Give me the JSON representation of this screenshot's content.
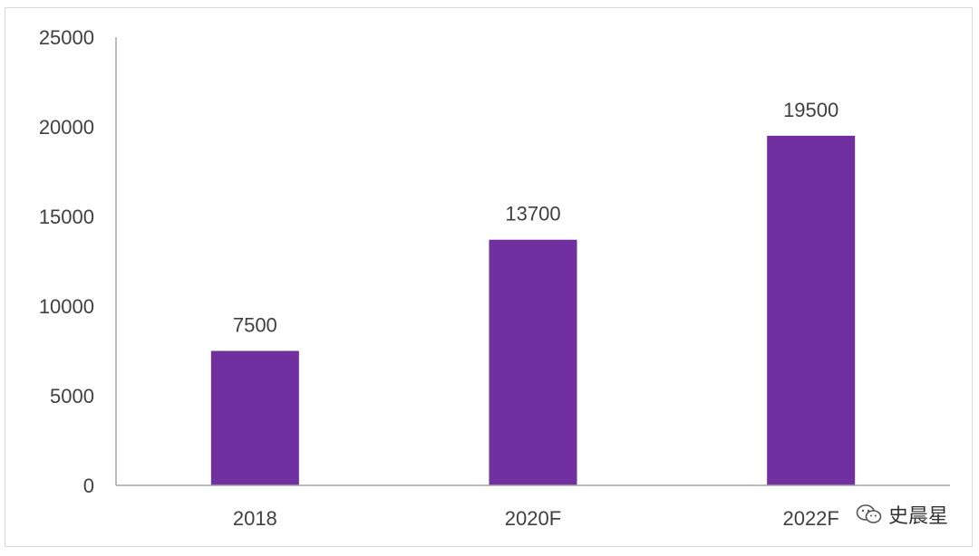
{
  "chart_data": {
    "type": "bar",
    "categories": [
      "2018",
      "2020F",
      "2022F"
    ],
    "values": [
      7500,
      13700,
      19500
    ],
    "data_labels": [
      "7500",
      "13700",
      "19500"
    ],
    "title": "",
    "xlabel": "",
    "ylabel": "",
    "ylim": [
      0,
      25000
    ],
    "yticks": [
      "0",
      "5000",
      "10000",
      "15000",
      "20000",
      "25000"
    ],
    "grid": false,
    "legend": "none",
    "bar_color": "#7030A0",
    "axis_color": "#A6A6A6",
    "text_color": "#404040"
  },
  "watermark": {
    "icon": "wechat-icon",
    "text": "史晨星"
  }
}
